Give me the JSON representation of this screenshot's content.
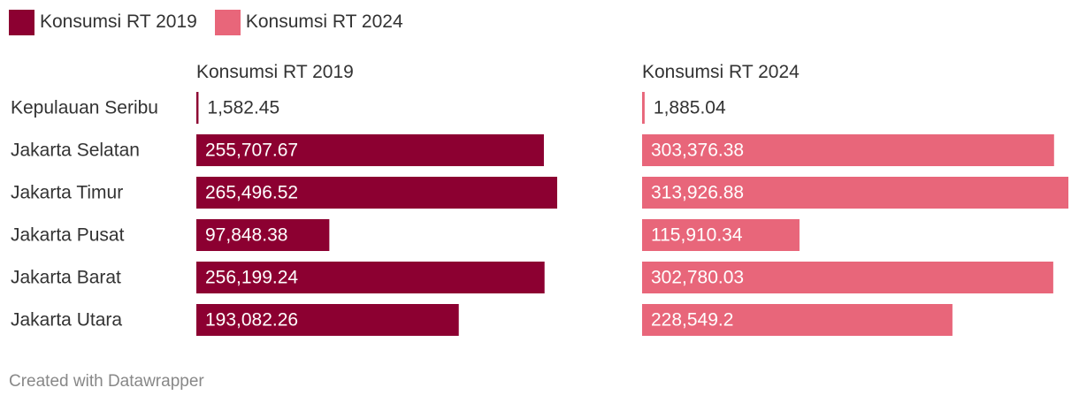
{
  "chart_data": {
    "type": "bar",
    "orientation": "horizontal",
    "layout": "small-multiples",
    "categories": [
      "Kepulauan Seribu",
      "Jakarta Selatan",
      "Jakarta Timur",
      "Jakarta Pusat",
      "Jakarta Barat",
      "Jakarta Utara"
    ],
    "series": [
      {
        "name": "Konsumsi RT 2019",
        "color": "#8c0031",
        "values": [
          1582.45,
          255707.67,
          265496.52,
          97848.38,
          256199.24,
          193082.26
        ],
        "value_labels": [
          "1,582.45",
          "255,707.67",
          "265,496.52",
          "97,848.38",
          "256,199.24",
          "193,082.26"
        ]
      },
      {
        "name": "Konsumsi RT 2024",
        "color": "#e8667a",
        "values": [
          1885.04,
          303376.38,
          313926.88,
          115910.34,
          302780.03,
          228549.2
        ],
        "value_labels": [
          "1,885.04",
          "303,376.38",
          "313,926.88",
          "115,910.34",
          "302,780.03",
          "228,549.2"
        ]
      }
    ],
    "legend_position": "top-left",
    "grid": false
  },
  "footer": {
    "credit": "Created with Datawrapper"
  }
}
